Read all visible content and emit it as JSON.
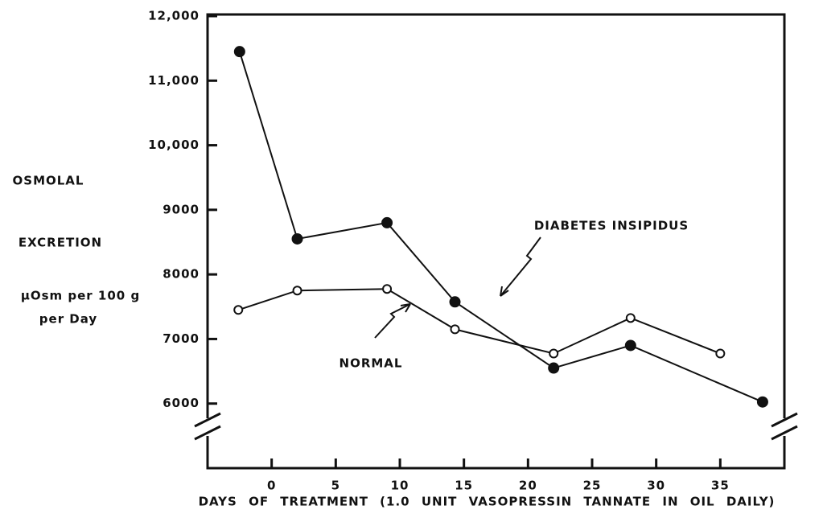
{
  "chart_data": {
    "type": "line",
    "ylabel": [
      "OSMOLAL",
      "EXCRETION",
      "μOsm per 100 g",
      "per Day"
    ],
    "xlabel": "DAYS OF TREATMENT (1.0 UNIT VASOPRESSIN TANNATE IN OIL DAILY)",
    "annotations": [
      "DIABETES INSIPIDUS",
      "NORMAL"
    ],
    "xlim": [
      -5,
      40
    ],
    "xticks": [
      0,
      5,
      10,
      15,
      20,
      25,
      30,
      35
    ],
    "ylim": [
      5000,
      12000
    ],
    "yticks": [
      {
        "value": 12000,
        "label": "12,000"
      },
      {
        "value": 11000,
        "label": "11,000"
      },
      {
        "value": 10000,
        "label": "10,000"
      },
      9000,
      8000,
      7000,
      6000
    ],
    "series": [
      {
        "name": "DIABETES INSIPIDUS",
        "color": "#111111",
        "marker": "filled",
        "x": [
          -2.5,
          2,
          9,
          14.3,
          22,
          28,
          38.3
        ],
        "values": [
          11450,
          8550,
          8800,
          7575,
          6550,
          6900,
          6025
        ]
      },
      {
        "name": "NORMAL",
        "color": "#111111",
        "marker": "open",
        "x": [
          -2.6,
          2,
          9,
          14.3,
          22,
          28,
          35
        ],
        "values": [
          7450,
          7750,
          7775,
          7150,
          6775,
          7325,
          6775
        ]
      }
    ]
  }
}
